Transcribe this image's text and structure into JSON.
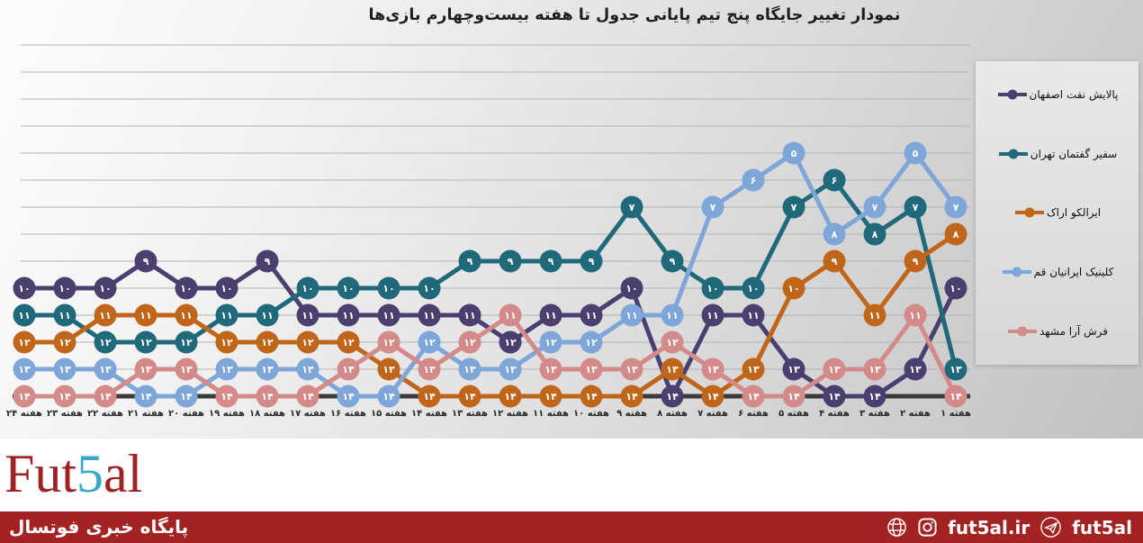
{
  "chart_data": {
    "type": "line",
    "title": "نمودار تغییر جایگاه پنج تیم پایانی جدول تا هفته بیست‌وچهارم بازی‌ها",
    "x_categories": [
      "هفته ۲۴",
      "هفته ۲۳",
      "هفته ۲۲",
      "هفته ۲۱",
      "هفته ۲۰",
      "هفته ۱۹",
      "هفته ۱۸",
      "هفته ۱۷",
      "هفته ۱۶",
      "هفته ۱۵",
      "هفته ۱۴",
      "هفته ۱۳",
      "هفته ۱۲",
      "هفته ۱۱",
      "هفته ۱۰",
      "هفته ۹",
      "هفته ۸",
      "هفته ۷",
      "هفته ۶",
      "هفته ۵",
      "هفته ۴",
      "هفته ۳",
      "هفته ۲",
      "هفته ۱"
    ],
    "x_order": "rtl-week24-to-week1",
    "y_range": [
      1,
      14
    ],
    "y_inverted": true,
    "grid": true,
    "legend_position": "right",
    "point_label_digits": "persian",
    "series": [
      {
        "name": "پالایش نفت اصفهان",
        "color": "#4a3f6e",
        "values": [
          10,
          10,
          10,
          9,
          10,
          10,
          9,
          11,
          11,
          11,
          11,
          11,
          12,
          11,
          11,
          10,
          14,
          11,
          11,
          13,
          14,
          14,
          13,
          10
        ]
      },
      {
        "name": "سفیر گفتمان تهران",
        "color": "#20697a",
        "values": [
          11,
          11,
          12,
          12,
          12,
          11,
          11,
          10,
          10,
          10,
          10,
          9,
          9,
          9,
          9,
          7,
          9,
          10,
          10,
          7,
          6,
          8,
          7,
          13
        ]
      },
      {
        "name": "ایرالکو اراک",
        "color": "#c0661b",
        "values": [
          12,
          12,
          11,
          11,
          11,
          12,
          12,
          12,
          12,
          13,
          14,
          14,
          14,
          14,
          14,
          14,
          13,
          14,
          13,
          10,
          9,
          11,
          9,
          8
        ]
      },
      {
        "name": "کلینیک ایرانیان قم",
        "color": "#7fa6d9",
        "values": [
          13,
          13,
          13,
          14,
          14,
          13,
          13,
          13,
          14,
          14,
          12,
          13,
          13,
          12,
          12,
          11,
          11,
          7,
          6,
          5,
          8,
          7,
          5,
          7
        ]
      },
      {
        "name": "فرش آرا مشهد",
        "color": "#d58a8a",
        "values": [
          14,
          14,
          14,
          13,
          13,
          14,
          14,
          14,
          13,
          12,
          13,
          12,
          11,
          13,
          13,
          13,
          12,
          13,
          14,
          14,
          13,
          13,
          11,
          14
        ]
      }
    ]
  },
  "footer": {
    "logo_start": "Fut",
    "logo_mid": "5",
    "logo_end": "al",
    "tagline": "پایگاه خبری فوتسال",
    "website": "fut5al.ir",
    "telegram_handle": "fut5al"
  }
}
